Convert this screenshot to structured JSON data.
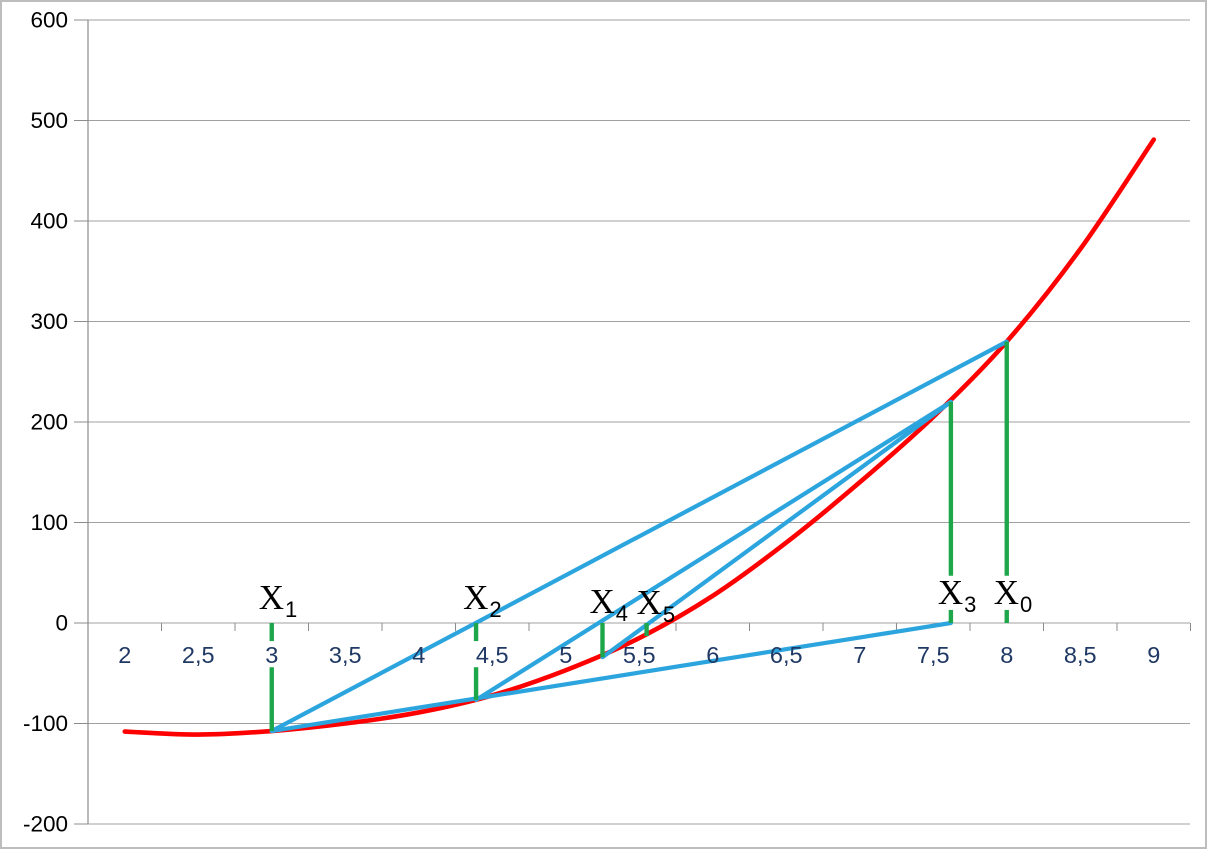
{
  "styling": {
    "background": "#FFFFFF",
    "frame_border": "#BDBDBD",
    "grid_color": "#A0A0A0",
    "axis_color": "#8C8C8C",
    "y_label_color": "#000000",
    "x_label_color": "#1F3864",
    "curve_color": "#FF0000",
    "secant_color": "#2CA5DE",
    "marker_color": "#1EA64B",
    "point_label_color": "#000000"
  },
  "chart_data": {
    "type": "line",
    "title": "",
    "xlabel": "",
    "ylabel": "",
    "grid": true,
    "legend": false,
    "x_axis": {
      "min": 2,
      "max": 9,
      "tick_step": 0.5,
      "decimal_separator": ",",
      "tick_labels": [
        "2",
        "2,5",
        "3",
        "3,5",
        "4",
        "4,5",
        "5",
        "5,5",
        "6",
        "6,5",
        "7",
        "7,5",
        "8",
        "8,5",
        "9"
      ],
      "tick_marks": "between_labels"
    },
    "y_axis": {
      "min": -200,
      "max": 600,
      "tick_step": 100,
      "tick_labels": [
        "600",
        "500",
        "400",
        "300",
        "200",
        "100",
        "0",
        "-100",
        "-200"
      ]
    },
    "series": [
      {
        "name": "function-curve",
        "kind": "smooth-line",
        "color_key": "curve_color",
        "stroke_width": 4.6,
        "points": [
          [
            2.0,
            -108
          ],
          [
            2.5,
            -111
          ],
          [
            3.0,
            -107.5
          ],
          [
            3.5,
            -100
          ],
          [
            4.0,
            -89
          ],
          [
            4.5,
            -72
          ],
          [
            5.0,
            -47
          ],
          [
            5.5,
            -15
          ],
          [
            6.0,
            27
          ],
          [
            6.5,
            80
          ],
          [
            7.0,
            140
          ],
          [
            7.5,
            205
          ],
          [
            8.0,
            280
          ],
          [
            8.5,
            372
          ],
          [
            9.0,
            481
          ]
        ]
      },
      {
        "name": "secant-lines",
        "kind": "segments",
        "color_key": "secant_color",
        "stroke_width": 4.2,
        "segments": [
          {
            "name": "secant-x1-x0",
            "from": [
              3.0,
              -107.5
            ],
            "to": [
              8.0,
              280
            ]
          },
          {
            "name": "secant-x1-x2-extended-to-x3",
            "from": [
              3.0,
              -107.5
            ],
            "to": [
              7.62,
              0
            ]
          },
          {
            "name": "secant-x2-x3",
            "from": [
              4.39,
              -76.5
            ],
            "to": [
              7.62,
              220
            ]
          },
          {
            "name": "secant-x4-x3",
            "from": [
              5.25,
              -34
            ],
            "to": [
              7.62,
              220
            ]
          }
        ]
      },
      {
        "name": "iteration-markers",
        "kind": "vertical-segments",
        "color_key": "marker_color",
        "stroke_width": 4.4,
        "verticals": [
          {
            "name": "marker-x1",
            "x": 3.0,
            "spans": [
              [
                0,
                -18
              ],
              [
                -44,
                -107.5
              ]
            ]
          },
          {
            "name": "marker-x2",
            "x": 4.39,
            "spans": [
              [
                0,
                -18
              ],
              [
                -44,
                -76.5
              ]
            ]
          },
          {
            "name": "marker-x4",
            "x": 5.25,
            "spans": [
              [
                0,
                -34
              ]
            ]
          },
          {
            "name": "marker-x5",
            "x": 5.55,
            "spans": [
              [
                0,
                -13
              ]
            ]
          },
          {
            "name": "marker-x3",
            "x": 7.62,
            "spans": [
              [
                220,
                47
              ],
              [
                13,
                0
              ]
            ]
          },
          {
            "name": "marker-x0",
            "x": 8.0,
            "spans": [
              [
                280,
                47
              ],
              [
                13,
                0
              ]
            ]
          }
        ]
      }
    ],
    "point_labels": [
      {
        "base": "X",
        "sub": "1",
        "x": 3.0,
        "y": 26
      },
      {
        "base": "X",
        "sub": "2",
        "x": 4.39,
        "y": 26
      },
      {
        "base": "X",
        "sub": "4",
        "x": 5.25,
        "y": 22
      },
      {
        "base": "X",
        "sub": "5",
        "x": 5.57,
        "y": 21
      },
      {
        "base": "X",
        "sub": "3",
        "x": 7.62,
        "y": 31
      },
      {
        "base": "X",
        "sub": "0",
        "x": 8.0,
        "y": 31
      }
    ]
  }
}
